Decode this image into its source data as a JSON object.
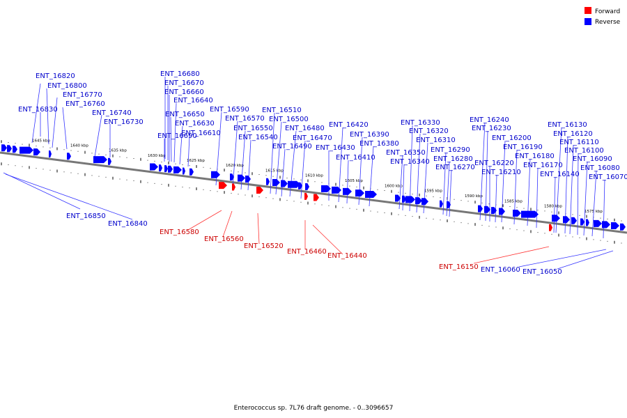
{
  "legend": [
    {
      "label": "Forward",
      "color": "#ff0000"
    },
    {
      "label": "Reverse",
      "color": "#0000ff"
    }
  ],
  "caption": "Enterococcus sp. 7L76 draft genome. - 0..3096657",
  "scale_labels": [
    "1645 kbp",
    "1640 kbp",
    "1635 kbp",
    "1630 kbp",
    "1625 kbp",
    "1620 kbp",
    "1615 kbp",
    "1610 kbp",
    "1605 kbp",
    "1600 kbp",
    "1595 kbp",
    "1590 kbp",
    "1585 kbp",
    "1580 kbp",
    "1575 kbp"
  ],
  "reverse_genes": [
    "ENT_16820",
    "ENT_16800",
    "ENT_16770",
    "ENT_16760",
    "ENT_16830",
    "ENT_16740",
    "ENT_16730",
    "ENT_16680",
    "ENT_16670",
    "ENT_16660",
    "ENT_16640",
    "ENT_16650",
    "ENT_16630",
    "ENT_16690",
    "ENT_16610",
    "ENT_16590",
    "ENT_16570",
    "ENT_16550",
    "ENT_16540",
    "ENT_16510",
    "ENT_16500",
    "ENT_16480",
    "ENT_16470",
    "ENT_16490",
    "ENT_16420",
    "ENT_16390",
    "ENT_16380",
    "ENT_16430",
    "ENT_16410",
    "ENT_16330",
    "ENT_16320",
    "ENT_16310",
    "ENT_16350",
    "ENT_16340",
    "ENT_16290",
    "ENT_16280",
    "ENT_16270",
    "ENT_16240",
    "ENT_16230",
    "ENT_16200",
    "ENT_16190",
    "ENT_16220",
    "ENT_16210",
    "ENT_16180",
    "ENT_16170",
    "ENT_16130",
    "ENT_16120",
    "ENT_16110",
    "ENT_16100",
    "ENT_16090",
    "ENT_16080",
    "ENT_16140",
    "ENT_16070",
    "ENT_16850",
    "ENT_16840",
    "ENT_16060",
    "ENT_16050"
  ],
  "forward_genes": [
    "ENT_16580",
    "ENT_16560",
    "ENT_16520",
    "ENT_16460",
    "ENT_16440",
    "ENT_16150"
  ]
}
